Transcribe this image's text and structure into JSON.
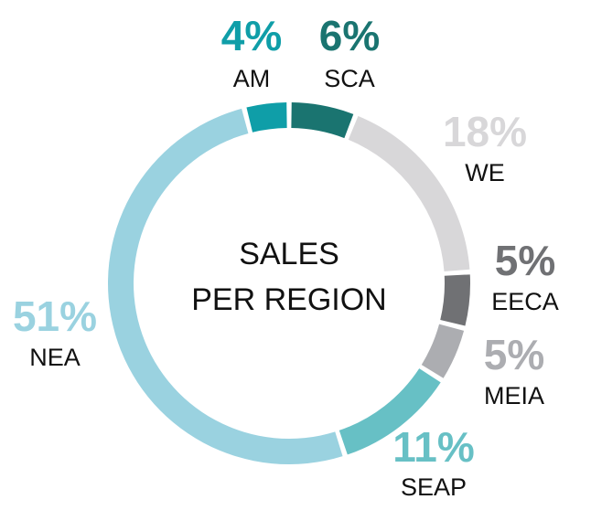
{
  "chart_data": {
    "type": "pie",
    "title": "SALES PER REGION",
    "title_lines": [
      "SALES",
      "PER REGION"
    ],
    "unit": "%",
    "style": "donut",
    "slices": [
      {
        "label": "SCA",
        "value": 6,
        "display": "6%",
        "color": "#1a7470",
        "pct_color": "#1a7470"
      },
      {
        "label": "WE",
        "value": 18,
        "display": "18%",
        "color": "#d8d7d9",
        "pct_color": "#d8d7d9"
      },
      {
        "label": "EECA",
        "value": 5,
        "display": "5%",
        "color": "#707174",
        "pct_color": "#707174"
      },
      {
        "label": "MEIA",
        "value": 5,
        "display": "5%",
        "color": "#acadb1",
        "pct_color": "#acadb1"
      },
      {
        "label": "SEAP",
        "value": 11,
        "display": "11%",
        "color": "#67c0c5",
        "pct_color": "#67c0c5"
      },
      {
        "label": "NEA",
        "value": 51,
        "display": "51%",
        "color": "#9ad2e0",
        "pct_color": "#9ad2e0"
      },
      {
        "label": "AM",
        "value": 4,
        "display": "4%",
        "color": "#0f9ea8",
        "pct_color": "#0f9ea8"
      }
    ]
  }
}
